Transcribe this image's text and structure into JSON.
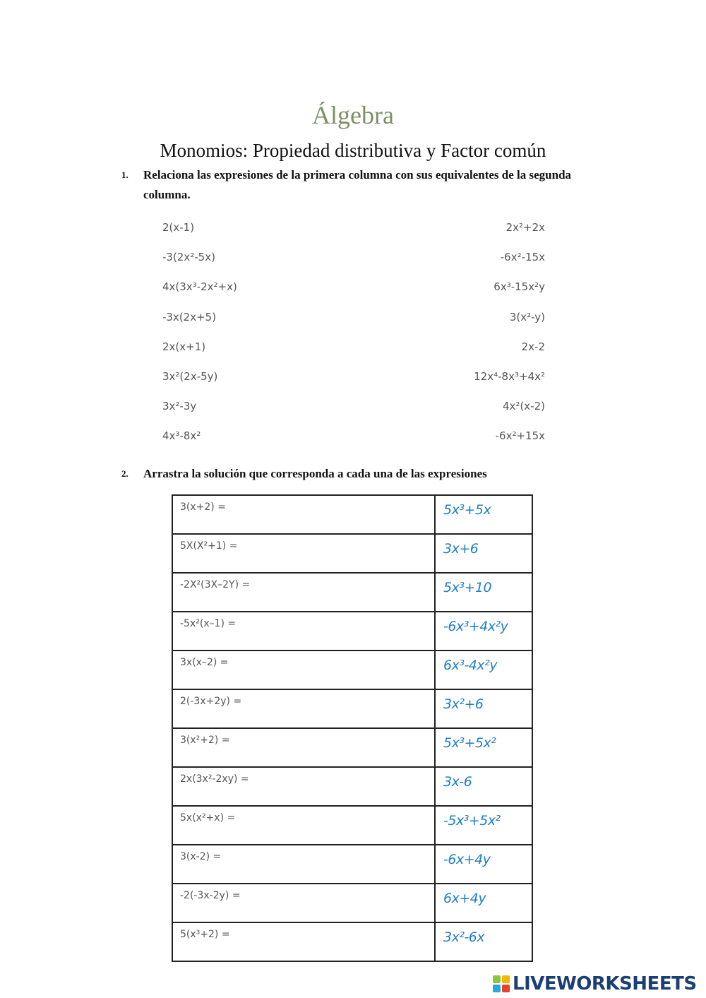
{
  "title": "Álgebra",
  "subtitle": "Monomios: Propiedad distributiva y Factor común",
  "question1": {
    "number": "1.",
    "text": "Relaciona las expresiones de la primera columna con sus equivalentes de la segunda columna.",
    "pairs": [
      {
        "left": "2(x-1)",
        "right": "2x²+2x"
      },
      {
        "left": "-3(2x²-5x)",
        "right": "-6x²-15x"
      },
      {
        "left": "4x(3x³-2x²+x)",
        "right": "6x³-15x²y"
      },
      {
        "left": "-3x(2x+5)",
        "right": "3(x²-y)"
      },
      {
        "left": "2x(x+1)",
        "right": "2x-2"
      },
      {
        "left": "3x²(2x-5y)",
        "right": "12x⁴-8x³+4x²"
      },
      {
        "left": "3x²-3y",
        "right": "4x²(x-2)"
      },
      {
        "left": "4x³-8x²",
        "right": "-6x²+15x"
      }
    ]
  },
  "question2": {
    "number": "2.",
    "text": "Arrastra la solución que corresponda a cada una de las expresiones",
    "rows": [
      {
        "expression": "3(x+2) =",
        "answer": "5x³+5x"
      },
      {
        "expression": "5X(X²+1) =",
        "answer": "3x+6"
      },
      {
        "expression": "-2X²(3X–2Y) =",
        "answer": "5x³+10"
      },
      {
        "expression": "-5x²(x–1) =",
        "answer": "-6x³+4x²y"
      },
      {
        "expression": "3x(x–2) =",
        "answer": "6x³-4x²y"
      },
      {
        "expression": "2(-3x+2y) =",
        "answer": "3x²+6"
      },
      {
        "expression": "3(x²+2) =",
        "answer": "5x³+5x²"
      },
      {
        "expression": "2x(3x²-2xy) =",
        "answer": "3x-6"
      },
      {
        "expression": "5x(x²+x) =",
        "answer": "-5x³+5x²"
      },
      {
        "expression": "3(x-2) =",
        "answer": "-6x+4y"
      },
      {
        "expression": "-2(-3x-2y) =",
        "answer": "6x+4y"
      },
      {
        "expression": "5(x³+2) =",
        "answer": "3x²-6x"
      }
    ]
  },
  "logo": {
    "text": "LIVEWORKSHEETS",
    "blocks": [
      "L",
      "I",
      "V",
      "E"
    ]
  },
  "colors": {
    "title": "#7a9263",
    "answer": "#1f7ec6",
    "logo": "#1b3f73"
  }
}
